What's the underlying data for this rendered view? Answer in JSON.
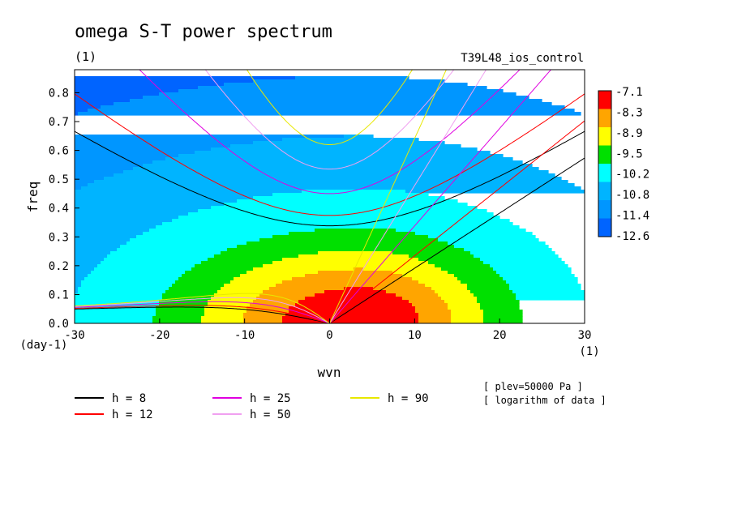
{
  "chart_data": {
    "type": "heatmap",
    "title": "omega S-T power spectrum",
    "units": "(1)",
    "experiment": "T39L48_ios_control",
    "xlabel": "wvn",
    "ylabel": "freq",
    "x_units": "(1)",
    "y_units": "(day-1)",
    "xlim": [
      -30,
      30
    ],
    "ylim": [
      0,
      0.88
    ],
    "x_ticks": [
      -30,
      -20,
      -10,
      0,
      10,
      20,
      30
    ],
    "x_tick_labels": [
      "-30",
      "-20",
      "-10",
      "0",
      "10",
      "20",
      "30"
    ],
    "y_ticks": [
      0,
      0.1,
      0.2,
      0.3,
      0.4,
      0.5,
      0.6,
      0.7,
      0.8
    ],
    "y_tick_labels": [
      "0.0",
      "0.1",
      "0.2",
      "0.3",
      "0.4",
      "0.5",
      "0.6",
      "0.7",
      "0.8"
    ],
    "colorbar": {
      "labels": [
        "-7.1",
        "-8.3",
        "-8.9",
        "-9.5",
        "-10.2",
        "-10.8",
        "-11.4",
        "-12.6"
      ],
      "colors": [
        "#ff0000",
        "#ffa500",
        "#ffff00",
        "#00e000",
        "#00ffff",
        "#00b4ff",
        "#0096ff",
        "#0064ff"
      ]
    },
    "contour_peak": [
      3.5,
      0.0
    ],
    "dispersion_curves": {
      "equivalent_depths_m": [
        8,
        12,
        25,
        50,
        90
      ],
      "legend_labels": [
        "h =  8",
        "h = 12",
        "h = 25",
        "h = 50",
        "h = 90"
      ],
      "colors": [
        "#000000",
        "#ff0000",
        "#e000e0",
        "#f0a0f0",
        "#e8e800"
      ]
    },
    "annotations": [
      "[ plev=50000 Pa ]",
      "[ logarithm of data ]"
    ]
  }
}
